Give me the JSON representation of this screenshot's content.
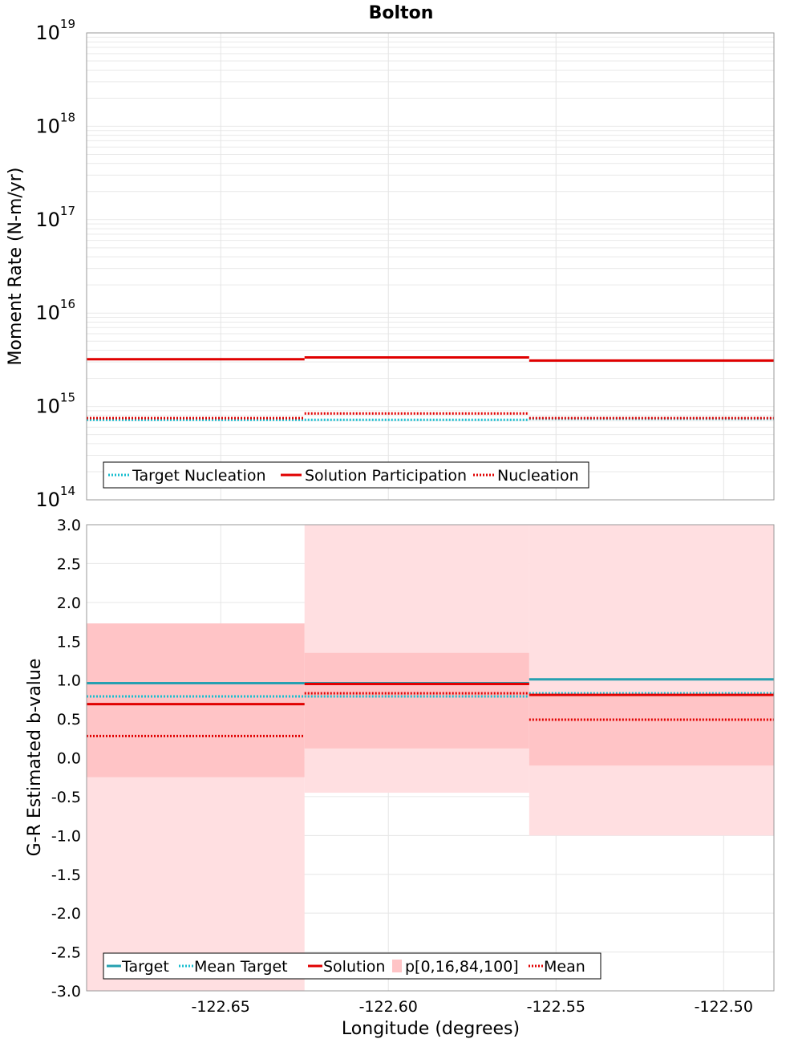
{
  "title": "Bolton",
  "chart_data": [
    {
      "type": "line",
      "ylabel": "Moment Rate (N-m/yr)",
      "yscale": "log",
      "ylim": [
        100000000000000.0,
        1e+19
      ],
      "y_ticks": [
        {
          "base": "10",
          "exp": "14",
          "value": 100000000000000.0
        },
        {
          "base": "10",
          "exp": "15",
          "value": 1000000000000000.0
        },
        {
          "base": "10",
          "exp": "16",
          "value": 1e+16
        },
        {
          "base": "10",
          "exp": "17",
          "value": 1e+17
        },
        {
          "base": "10",
          "exp": "18",
          "value": 1e+18
        },
        {
          "base": "10",
          "exp": "19",
          "value": 1e+19
        }
      ],
      "bins": [
        [
          -122.69,
          -122.625
        ],
        [
          -122.625,
          -122.558
        ],
        [
          -122.558,
          -122.485
        ]
      ],
      "series": [
        {
          "name": "Target Nucleation",
          "color": "#17becf",
          "style": "dotted",
          "values": [
            720000000000000.0,
            720000000000000.0,
            740000000000000.0
          ]
        },
        {
          "name": "Solution Participation",
          "color": "#e00000",
          "style": "solid",
          "values": [
            3200000000000000.0,
            3350000000000000.0,
            3100000000000000.0
          ]
        },
        {
          "name": "Nucleation",
          "color": "#e00000",
          "style": "dotted",
          "values": [
            750000000000000.0,
            840000000000000.0,
            750000000000000.0
          ]
        }
      ],
      "legend": {
        "position": "bottom-left",
        "items": [
          "Target Nucleation",
          "Solution Participation",
          "Nucleation"
        ]
      }
    },
    {
      "type": "line",
      "xlabel": "Longitude (degrees)",
      "ylabel": "G-R Estimated b-value",
      "xlim": [
        -122.69,
        -122.485
      ],
      "ylim": [
        -3.0,
        3.0
      ],
      "x_ticks": [
        {
          "label": "-122.65",
          "value": -122.65
        },
        {
          "label": "-122.60",
          "value": -122.6
        },
        {
          "label": "-122.55",
          "value": -122.55
        },
        {
          "label": "-122.50",
          "value": -122.5
        }
      ],
      "y_ticks": [
        {
          "label": "3.0",
          "value": 3.0
        },
        {
          "label": "2.5",
          "value": 2.5
        },
        {
          "label": "2.0",
          "value": 2.0
        },
        {
          "label": "1.5",
          "value": 1.5
        },
        {
          "label": "1.0",
          "value": 1.0
        },
        {
          "label": "0.5",
          "value": 0.5
        },
        {
          "label": "0.0",
          "value": 0.0
        },
        {
          "label": "-0.5",
          "value": -0.5
        },
        {
          "label": "-1.0",
          "value": -1.0
        },
        {
          "label": "-1.5",
          "value": -1.5
        },
        {
          "label": "-2.0",
          "value": -2.0
        },
        {
          "label": "-2.5",
          "value": -2.5
        },
        {
          "label": "-3.0",
          "value": -3.0
        }
      ],
      "bins": [
        [
          -122.69,
          -122.625
        ],
        [
          -122.625,
          -122.558
        ],
        [
          -122.558,
          -122.485
        ]
      ],
      "bands": {
        "name": "p[0,16,84,100]",
        "outer_color": "#ffdfe1",
        "inner_color": "#ffc4c6",
        "p0": [
          -3.0,
          -0.45,
          -1.0
        ],
        "p16": [
          -0.25,
          0.12,
          -0.1
        ],
        "p84": [
          1.73,
          1.35,
          0.82
        ],
        "p100": [
          1.73,
          3.0,
          3.0
        ]
      },
      "series": [
        {
          "name": "Target",
          "color": "#26a0b0",
          "style": "solid",
          "values": [
            0.96,
            0.96,
            1.01
          ]
        },
        {
          "name": "Mean Target",
          "color": "#17becf",
          "style": "dotted",
          "values": [
            0.79,
            0.79,
            0.83
          ]
        },
        {
          "name": "Solution",
          "color": "#e00000",
          "style": "solid",
          "values": [
            0.69,
            0.95,
            0.81
          ]
        },
        {
          "name": "Mean",
          "color": "#e00000",
          "style": "dotted",
          "values": [
            0.28,
            0.83,
            0.49
          ]
        }
      ],
      "legend": {
        "position": "bottom-left",
        "items": [
          "Target",
          "Mean Target",
          "Solution",
          "p[0,16,84,100]",
          "Mean"
        ]
      }
    }
  ]
}
